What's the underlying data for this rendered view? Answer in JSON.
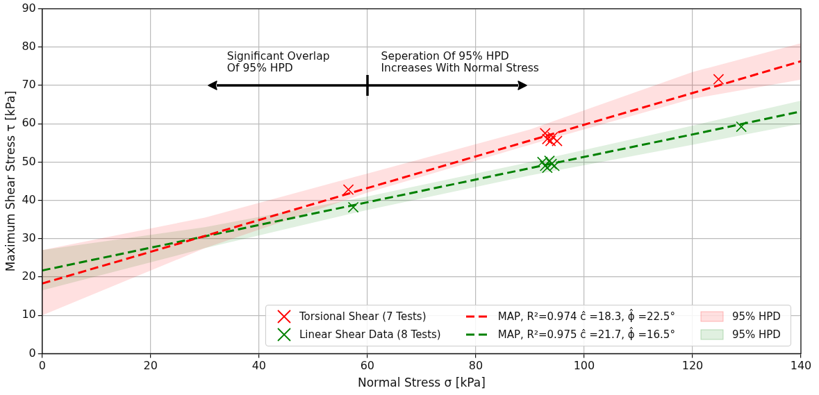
{
  "chart_data": {
    "type": "scatter",
    "xlabel": "Normal Stress σ [kPa]",
    "ylabel": "Maximum Shear Stress τ [kPa]",
    "xlim": [
      0,
      140
    ],
    "xticks": [
      0,
      20,
      40,
      60,
      80,
      100,
      120,
      140
    ],
    "ylim": [
      0,
      90
    ],
    "yticks": [
      0,
      10,
      20,
      30,
      40,
      50,
      60,
      70,
      80,
      90
    ],
    "grid": true,
    "legend": "bottom right",
    "marker": "cross",
    "annotations": [
      "Significant Overlap\nOf 95% HPD",
      "Seperation Of 95% HPD\nIncreases With Normal Stress",
      "95% HPD",
      "95% HPD"
    ],
    "series": [
      {
        "name": "Torsional Shear (7 Tests)",
        "color": "#ff0000",
        "x": [
          56.5,
          92.8,
          93.2,
          93.8,
          94.2,
          95.0,
          124.8
        ],
        "values": [
          42.8,
          57.5,
          56.0,
          55.5,
          56.5,
          55.5,
          71.6
        ]
      },
      {
        "name": "Linear Shear Data (8 Tests)",
        "color": "#008000",
        "x": [
          57.4,
          92.3,
          92.8,
          93.2,
          93.6,
          94.0,
          94.5,
          129.0
        ],
        "values": [
          38.2,
          50.0,
          49.0,
          48.5,
          50.3,
          49.5,
          49.0,
          59.2
        ]
      },
      {
        "type": "line",
        "name": "MAP, R²=0.974  ĉ =18.3, ϕ̂ =22.5°",
        "color": "#ff0000",
        "line_style": "dashed",
        "marker": "none",
        "x": [
          0,
          30,
          60,
          90,
          120,
          140
        ],
        "values": [
          18.3,
          30.7,
          43.2,
          55.6,
          68.0,
          76.3
        ],
        "lower": [
          10,
          27.5,
          42,
          54.5,
          66.5,
          71.5
        ],
        "upper": [
          27,
          35.5,
          47,
          58.5,
          73.5,
          81
        ]
      },
      {
        "type": "line",
        "name": "MAP, R²=0.975  ĉ =21.7, ϕ̂ =16.5°",
        "color": "#008000",
        "line_style": "dashed",
        "marker": "none",
        "x": [
          0,
          30,
          60,
          90,
          120,
          140
        ],
        "values": [
          21.7,
          30.6,
          39.5,
          48.4,
          57.2,
          63.2
        ],
        "lower": [
          16.5,
          27.5,
          37.5,
          46.5,
          54.5,
          60
        ],
        "upper": [
          27,
          33,
          41,
          50,
          59.5,
          66
        ]
      }
    ]
  }
}
